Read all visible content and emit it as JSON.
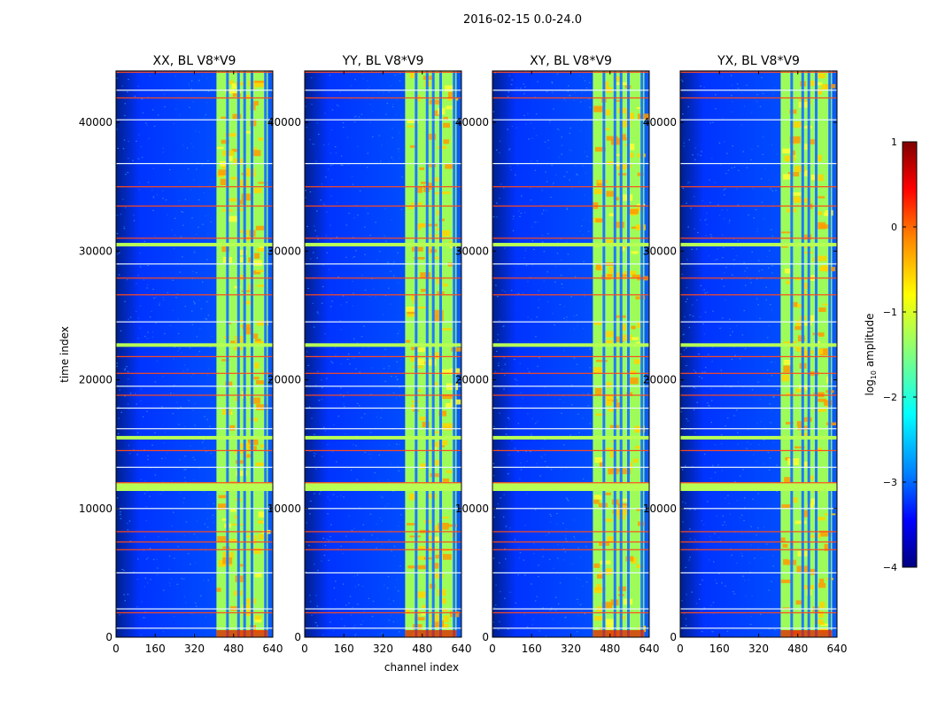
{
  "figure": {
    "suptitle": "2016-02-15 0.0-24.0"
  },
  "chart_data": {
    "type": "heatmap",
    "xlabel": "channel index",
    "ylabel": "time index",
    "xlim": [
      0,
      640
    ],
    "ylim": [
      0,
      44000
    ],
    "xticks": [
      0,
      160,
      320,
      480,
      640
    ],
    "yticks": [
      0,
      10000,
      20000,
      30000,
      40000
    ],
    "panels": [
      {
        "title": "XX, BL V8*V9"
      },
      {
        "title": "YY, BL V8*V9"
      },
      {
        "title": "XY, BL V8*V9"
      },
      {
        "title": "YX, BL V8*V9"
      }
    ],
    "colorbar": {
      "label": "log10 amplitude",
      "range": [
        -4,
        1
      ],
      "ticks": [
        1,
        0,
        -1,
        -2,
        -3,
        -4
      ],
      "tick_labels": [
        "1",
        "0",
        "−1",
        "−2",
        "−3",
        "−4"
      ],
      "colormap": "jet"
    },
    "rfi_band_channels": [
      410,
      620
    ],
    "rfi_vertical_line_channels": [
      455,
      500,
      525,
      555,
      610
    ],
    "flagged_time_rows_bright": [
      11500,
      11700,
      11900,
      15500,
      22700,
      30500
    ],
    "flagged_time_rows_red": [
      1900,
      6800,
      7400,
      8200,
      12000,
      14500,
      18800,
      20500,
      21800,
      26600,
      27900,
      31000,
      33500,
      35000,
      41900,
      43900
    ],
    "flagged_time_rows_white": [
      700,
      2200,
      5000,
      10000,
      13200,
      16200,
      17800,
      19500,
      24500,
      29000,
      36800,
      40200,
      42500
    ]
  }
}
